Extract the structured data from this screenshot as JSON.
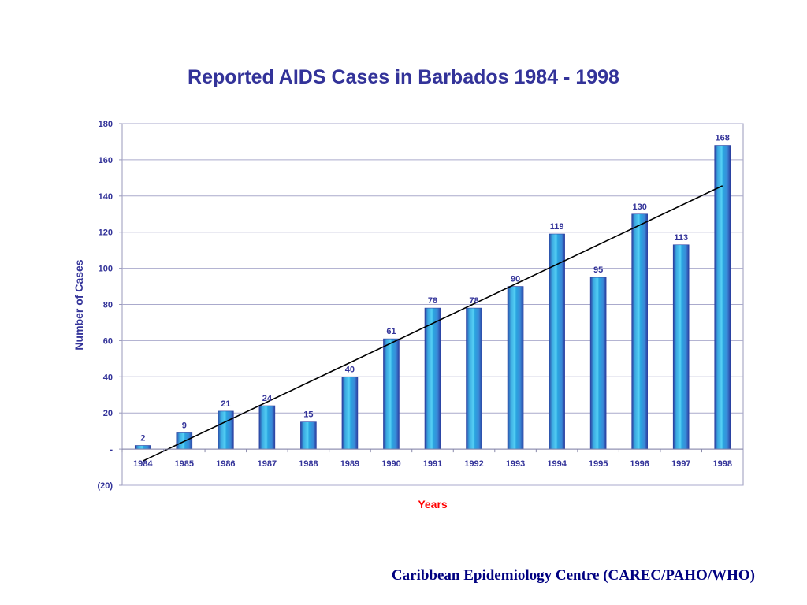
{
  "chart_data": {
    "type": "bar",
    "title": "Reported AIDS Cases in Barbados 1984 - 1998",
    "xlabel": "Years",
    "ylabel": "Number of Cases",
    "categories": [
      "1984",
      "1985",
      "1986",
      "1987",
      "1988",
      "1989",
      "1990",
      "1991",
      "1992",
      "1993",
      "1994",
      "1995",
      "1996",
      "1997",
      "1998"
    ],
    "values": [
      2,
      9,
      21,
      24,
      15,
      40,
      61,
      78,
      78,
      90,
      119,
      95,
      130,
      113,
      168
    ],
    "ylim": [
      -20,
      180
    ],
    "yticks": [
      180,
      160,
      140,
      120,
      100,
      80,
      60,
      40,
      20,
      0,
      -20
    ],
    "ytick_labels": [
      "180",
      "160",
      "140",
      "120",
      "100",
      "80",
      "60",
      "40",
      "20",
      "-",
      "(20)"
    ],
    "trendline": {
      "type": "linear",
      "color": "#000000"
    },
    "grid": true,
    "bar_color": "#33bbee"
  },
  "footer": {
    "source": "Caribbean Epidemiology Centre (CAREC/PAHO/WHO)"
  }
}
